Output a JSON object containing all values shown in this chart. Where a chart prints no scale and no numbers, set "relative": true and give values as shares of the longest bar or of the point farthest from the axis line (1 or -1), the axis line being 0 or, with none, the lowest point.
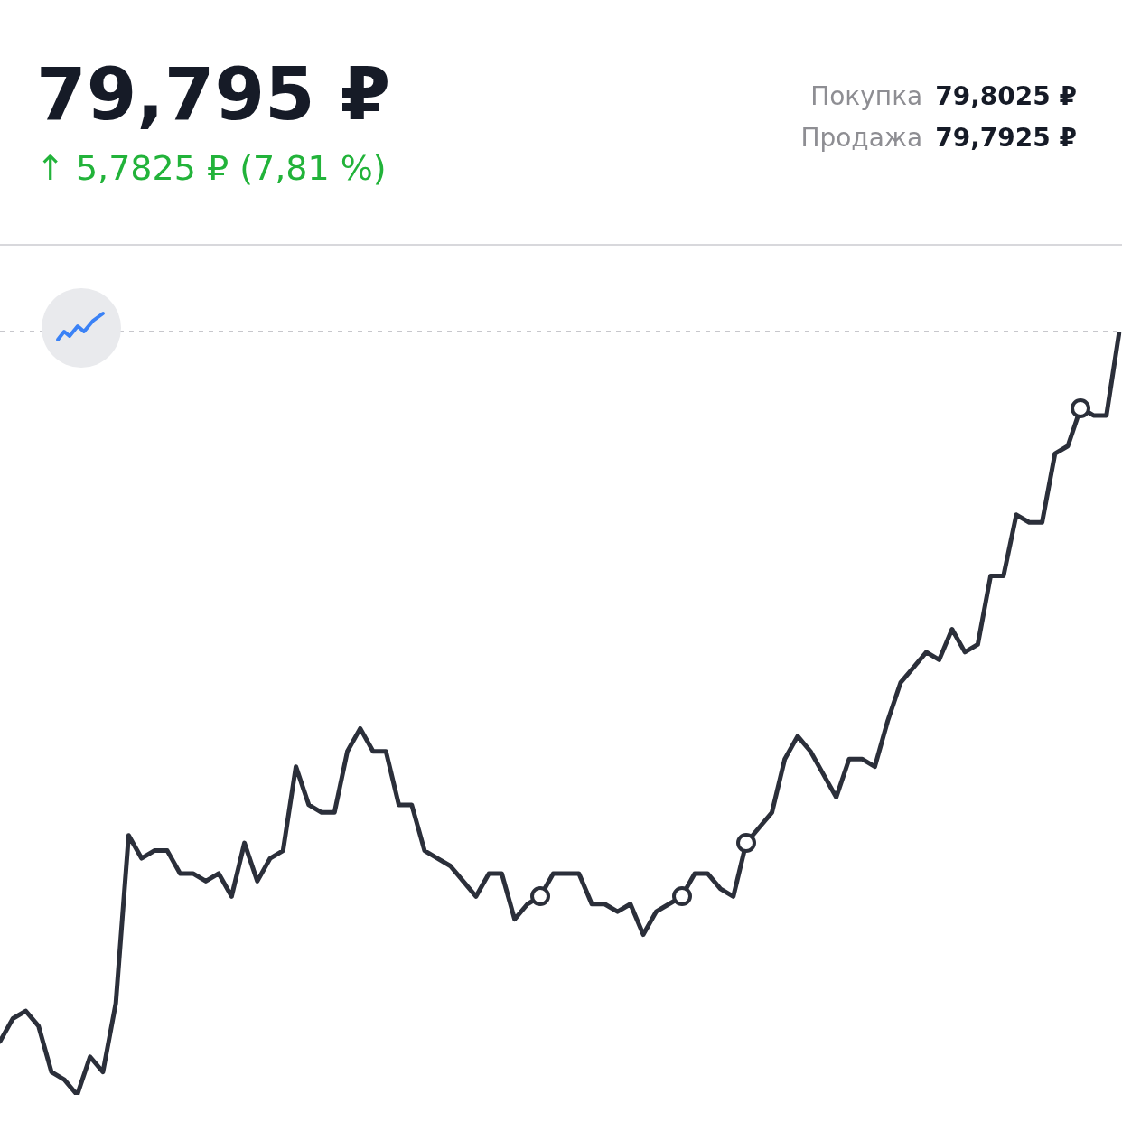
{
  "chart_data": {
    "type": "line",
    "title": "79,795 ₽",
    "subtitle": "↑ 5,7825 ₽ (7,81 %)",
    "annotations": [
      "Покупка",
      "79,8025 ₽",
      "Продажа",
      "79,7925 ₽"
    ],
    "relative": true,
    "legend": false,
    "line_style": "solid",
    "marker": "none",
    "categories": [
      null,
      null,
      null,
      null,
      null,
      null,
      null,
      null,
      null,
      null,
      null,
      null,
      null,
      null,
      null,
      null,
      null,
      null,
      null,
      null,
      null,
      null,
      null,
      null,
      null,
      null,
      null,
      null,
      null,
      null,
      null,
      null,
      null,
      null,
      null,
      null,
      null,
      null,
      null,
      null,
      null,
      null,
      null,
      null,
      null,
      null,
      null,
      null,
      null,
      null,
      null,
      null,
      null,
      null,
      null,
      null,
      null,
      null,
      null,
      null,
      null,
      null,
      null,
      null,
      null,
      null,
      null,
      null,
      null,
      null,
      null,
      null,
      null,
      null,
      null,
      null,
      null,
      null,
      null,
      null,
      null,
      null,
      null,
      null,
      null,
      null,
      null,
      null
    ],
    "ref_lines": [
      {
        "axis": "y",
        "value": 1,
        "color": "#c7c7cc",
        "line_style": "dotted"
      }
    ],
    "series": [
      {
        "type": "line",
        "color": "#2b2f3a",
        "values": [
          0.07,
          0.1,
          0.11,
          0.09,
          0.03,
          0.02,
          0,
          0.05,
          0.03,
          0.12,
          0.34,
          0.31,
          0.32,
          0.32,
          0.29,
          0.29,
          0.28,
          0.29,
          0.26,
          0.33,
          0.28,
          0.31,
          0.32,
          0.43,
          0.38,
          0.37,
          0.37,
          0.45,
          0.48,
          0.45,
          0.45,
          0.38,
          0.38,
          0.32,
          0.31,
          0.3,
          0.28,
          0.26,
          0.29,
          0.29,
          0.23,
          0.25,
          0.26,
          0.29,
          0.29,
          0.29,
          0.25,
          0.25,
          0.24,
          0.25,
          0.21,
          0.24,
          0.25,
          0.26,
          0.29,
          0.29,
          0.27,
          0.26,
          0.33,
          0.35,
          0.37,
          0.44,
          0.47,
          0.45,
          0.42,
          0.39,
          0.44,
          0.44,
          0.43,
          0.49,
          0.54,
          0.56,
          0.58,
          0.57,
          0.61,
          0.58,
          0.59,
          0.68,
          0.68,
          0.76,
          0.75,
          0.75,
          0.84,
          0.85,
          0.9,
          0.89,
          0.89,
          1
        ]
      }
    ]
  }
}
